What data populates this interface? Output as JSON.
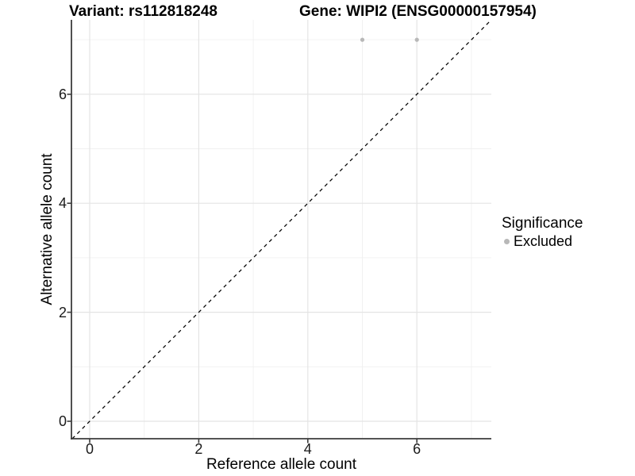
{
  "chart_data": {
    "type": "scatter",
    "titles": {
      "left": "Variant: rs112818248",
      "right": "Gene: WIPI2 (ENSG00000157954)"
    },
    "xlabel": "Reference allele count",
    "ylabel": "Alternative allele count",
    "xlim": [
      -0.35,
      7.35
    ],
    "ylim": [
      -0.35,
      7.35
    ],
    "xticks": {
      "values": [
        0,
        2,
        4,
        6
      ],
      "labels": [
        "0",
        "2",
        "4",
        "6"
      ]
    },
    "yticks": {
      "values": [
        0,
        2,
        4,
        6
      ],
      "labels": [
        "0",
        "2",
        "4",
        "6"
      ]
    },
    "minor_gridlines_x": [
      1,
      3,
      5,
      7
    ],
    "minor_gridlines_y": [
      1,
      3,
      5,
      7
    ],
    "grid": "on",
    "identity_line": {
      "slope": 1,
      "intercept": 0,
      "style": "dashed",
      "color": "#000000"
    },
    "series": [
      {
        "name": "Excluded",
        "color": "#b8b8b8",
        "points": [
          {
            "x": 5,
            "y": 7
          },
          {
            "x": 6,
            "y": 7
          }
        ]
      }
    ],
    "legend": {
      "title": "Significance",
      "position": "right",
      "items": [
        {
          "label": "Excluded",
          "color": "#b8b8b8"
        }
      ]
    },
    "colors": {
      "background": "#ffffff",
      "grid_major": "#e4e4e4",
      "grid_minor": "#f0f0f0",
      "axis_line": "#3c3c3c",
      "tick_label": "#1a1a1a"
    }
  }
}
